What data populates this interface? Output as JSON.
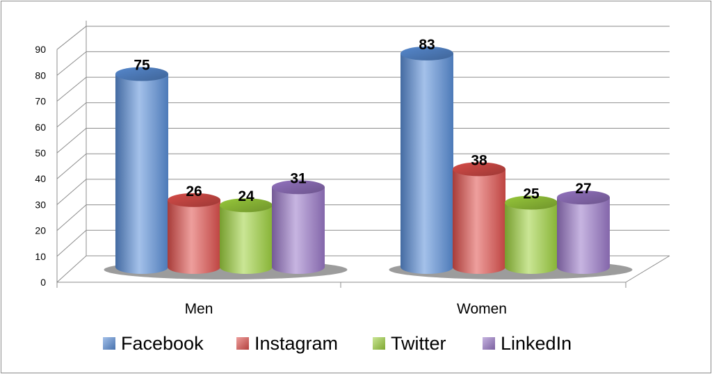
{
  "chart_data": {
    "type": "bar",
    "style": "3d-cylinder",
    "categories": [
      "Men",
      "Women"
    ],
    "series": [
      {
        "name": "Facebook",
        "values": [
          75,
          83
        ],
        "color": "#5a8fd8"
      },
      {
        "name": "Instagram",
        "values": [
          26,
          38
        ],
        "color": "#e0504c"
      },
      {
        "name": "Twitter",
        "values": [
          24,
          25
        ],
        "color": "#9fd23e"
      },
      {
        "name": "LinkedIn",
        "values": [
          31,
          27
        ],
        "color": "#9a78c8"
      }
    ],
    "yticks": [
      "0",
      "10",
      "20",
      "30",
      "40",
      "50",
      "60",
      "70",
      "80",
      "90"
    ],
    "ylim": [
      0,
      90
    ],
    "grid": true,
    "legend": "bottom"
  }
}
